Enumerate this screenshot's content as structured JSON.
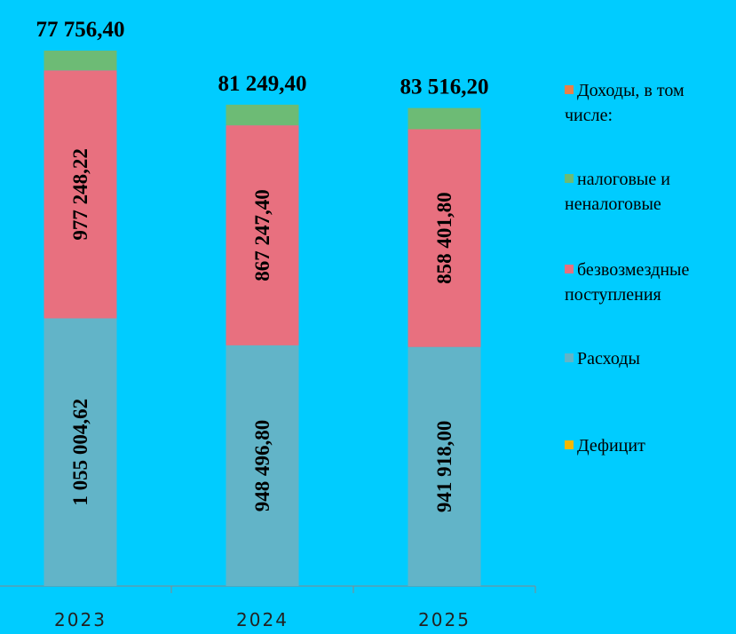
{
  "chart_data": {
    "type": "stacked-bar",
    "categories": [
      "2023",
      "2024",
      "2025"
    ],
    "series": [
      {
        "name": "Доходы, в том числе:",
        "color": "#e8804a",
        "values": [
          null,
          null,
          null
        ]
      },
      {
        "name": "налоговые и неналоговые",
        "color": "#6dbb75",
        "values": [
          77756.4,
          81249.4,
          83516.2
        ],
        "value_labels": [
          "77 756,40",
          "81 249,40",
          "83 516,20"
        ]
      },
      {
        "name": "безвозмездные поступления",
        "color": "#e8707f",
        "values": [
          977248.22,
          867247.4,
          858401.8
        ],
        "value_labels": [
          "977 248,22",
          "867 247,40",
          "858 401,80"
        ]
      },
      {
        "name": "Расходы",
        "color": "#62b4c8",
        "values": [
          1055004.62,
          948496.8,
          941918.0
        ],
        "value_labels": [
          "1 055 004,62",
          "948 496,80",
          "941 918,00"
        ]
      },
      {
        "name": "Дефицит",
        "color": "#f5b800",
        "values": [
          null,
          null,
          null
        ]
      }
    ]
  }
}
